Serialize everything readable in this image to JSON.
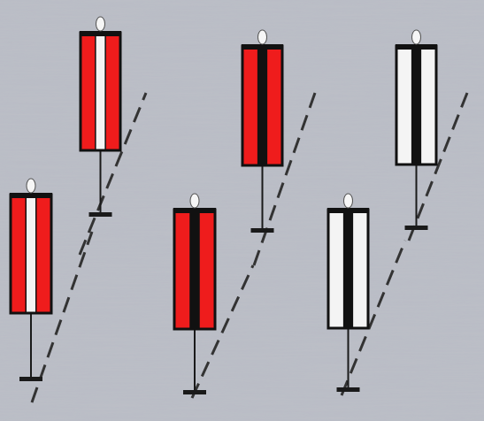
{
  "palette": {
    "background": "#b9bcc5",
    "background_dark": "#a6a9b3",
    "red": "#ef1c1c",
    "white": "#f4f4f4",
    "black": "#111111",
    "pole": "#1a1a1a",
    "shaft": "#333333",
    "bead": "#f6f6f6"
  },
  "banners": [
    {
      "name": "banner-red-white-left",
      "outer": "red",
      "middle": "white"
    },
    {
      "name": "banner-red-white-top",
      "outer": "red",
      "middle": "white"
    },
    {
      "name": "banner-red-black-middle",
      "outer": "red",
      "middle": "black"
    },
    {
      "name": "banner-red-black-top",
      "outer": "red",
      "middle": "black"
    },
    {
      "name": "banner-white-black-right",
      "outer": "white",
      "middle": "black"
    },
    {
      "name": "banner-white-black-top",
      "outer": "white",
      "middle": "black"
    }
  ]
}
